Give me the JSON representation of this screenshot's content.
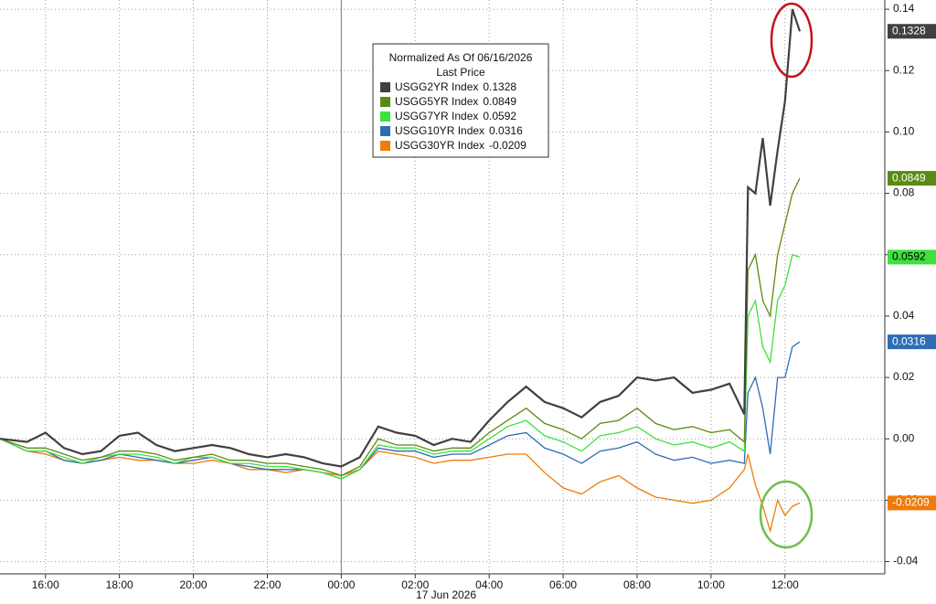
{
  "chart_data": {
    "type": "line",
    "legend_title": "Normalized As Of 06/16/2026",
    "legend_subtitle": "Last Price",
    "x_sublabel": "17 Jun 2026",
    "x": [
      -9.23,
      -8.5,
      -8,
      -7.5,
      -7,
      -6.5,
      -6,
      -5.5,
      -5,
      -4.5,
      -4,
      -3.5,
      -3,
      -2.5,
      -2,
      -1.5,
      -1,
      -0.5,
      0,
      0.5,
      1,
      1.5,
      2,
      2.5,
      3,
      3.5,
      4,
      4.5,
      5,
      5.5,
      6,
      6.5,
      7,
      7.5,
      8,
      8.5,
      9,
      9.5,
      10,
      10.5,
      10.9,
      11.0,
      11.2,
      11.4,
      11.6,
      11.8,
      12.0,
      12.2,
      12.4
    ],
    "series": [
      {
        "name": "USGG2YR Index",
        "color": "#404040",
        "values": [
          0,
          -0.001,
          0.002,
          -0.003,
          -0.005,
          -0.004,
          0.001,
          0.002,
          -0.002,
          -0.004,
          -0.003,
          -0.002,
          -0.003,
          -0.005,
          -0.006,
          -0.005,
          -0.006,
          -0.008,
          -0.009,
          -0.006,
          0.004,
          0.002,
          0.001,
          -0.002,
          0.0,
          -0.001,
          0.006,
          0.012,
          0.017,
          0.012,
          0.01,
          0.007,
          0.012,
          0.014,
          0.02,
          0.019,
          0.02,
          0.015,
          0.016,
          0.018,
          0.008,
          0.082,
          0.08,
          0.098,
          0.076,
          0.094,
          0.11,
          0.14,
          0.1328
        ]
      },
      {
        "name": "USGG5YR Index",
        "color": "#5b8a14",
        "values": [
          0,
          -0.003,
          -0.003,
          -0.005,
          -0.007,
          -0.006,
          -0.004,
          -0.004,
          -0.005,
          -0.007,
          -0.006,
          -0.005,
          -0.007,
          -0.007,
          -0.008,
          -0.008,
          -0.009,
          -0.01,
          -0.012,
          -0.009,
          0.0,
          -0.002,
          -0.002,
          -0.004,
          -0.003,
          -0.003,
          0.002,
          0.006,
          0.01,
          0.005,
          0.003,
          0.0,
          0.005,
          0.006,
          0.01,
          0.005,
          0.003,
          0.004,
          0.002,
          0.003,
          -0.001,
          0.055,
          0.06,
          0.045,
          0.04,
          0.06,
          0.07,
          0.08,
          0.0849
        ]
      },
      {
        "name": "USGG7YR Index",
        "color": "#3fe03f",
        "values": [
          0,
          -0.004,
          -0.004,
          -0.006,
          -0.008,
          -0.006,
          -0.005,
          -0.005,
          -0.006,
          -0.008,
          -0.006,
          -0.006,
          -0.008,
          -0.008,
          -0.009,
          -0.009,
          -0.01,
          -0.011,
          -0.013,
          -0.01,
          -0.002,
          -0.003,
          -0.003,
          -0.005,
          -0.004,
          -0.004,
          0.0,
          0.004,
          0.006,
          0.001,
          -0.001,
          -0.004,
          0.001,
          0.002,
          0.004,
          0.0,
          -0.002,
          -0.001,
          -0.003,
          -0.001,
          -0.004,
          0.04,
          0.045,
          0.03,
          0.025,
          0.045,
          0.05,
          0.06,
          0.0592
        ]
      },
      {
        "name": "USGG10YR Index",
        "color": "#2e6db4",
        "values": [
          0,
          -0.004,
          -0.004,
          -0.007,
          -0.008,
          -0.007,
          -0.005,
          -0.006,
          -0.007,
          -0.008,
          -0.007,
          -0.006,
          -0.008,
          -0.009,
          -0.01,
          -0.01,
          -0.01,
          -0.011,
          -0.013,
          -0.01,
          -0.003,
          -0.004,
          -0.004,
          -0.006,
          -0.005,
          -0.005,
          -0.002,
          0.001,
          0.002,
          -0.003,
          -0.005,
          -0.008,
          -0.004,
          -0.003,
          -0.001,
          -0.005,
          -0.007,
          -0.006,
          -0.008,
          -0.007,
          -0.008,
          0.015,
          0.02,
          0.01,
          -0.005,
          0.02,
          0.02,
          0.03,
          0.0316
        ]
      },
      {
        "name": "USGG30YR Index",
        "color": "#ef7b0b",
        "values": [
          0,
          -0.004,
          -0.005,
          -0.007,
          -0.008,
          -0.007,
          -0.006,
          -0.007,
          -0.007,
          -0.008,
          -0.008,
          -0.007,
          -0.008,
          -0.01,
          -0.01,
          -0.011,
          -0.01,
          -0.011,
          -0.012,
          -0.01,
          -0.004,
          -0.005,
          -0.006,
          -0.008,
          -0.007,
          -0.007,
          -0.006,
          -0.005,
          -0.005,
          -0.011,
          -0.016,
          -0.018,
          -0.014,
          -0.012,
          -0.016,
          -0.019,
          -0.02,
          -0.021,
          -0.02,
          -0.016,
          -0.01,
          -0.005,
          -0.015,
          -0.022,
          -0.03,
          -0.02,
          -0.025,
          -0.022,
          -0.0209
        ]
      }
    ],
    "xlim": [
      -9.23,
      14.7
    ],
    "xticks": [
      {
        "value": -8,
        "label": "16:00"
      },
      {
        "value": -6,
        "label": "18:00"
      },
      {
        "value": -4,
        "label": "20:00"
      },
      {
        "value": -2,
        "label": "22:00"
      },
      {
        "value": 0,
        "label": "00:00"
      },
      {
        "value": 2,
        "label": "02:00"
      },
      {
        "value": 4,
        "label": "04:00"
      },
      {
        "value": 6,
        "label": "06:00"
      },
      {
        "value": 8,
        "label": "08:00"
      },
      {
        "value": 10,
        "label": "10:00"
      },
      {
        "value": 12,
        "label": "12:00"
      }
    ],
    "ylim": [
      -0.044,
      0.143
    ],
    "yticks": [
      -0.04,
      -0.02,
      {
        "value": 0,
        "label": "0.00"
      },
      0.02,
      0.04,
      0.06,
      0.08,
      {
        "value": 0.1,
        "label": "0.10"
      },
      0.12,
      0.14
    ],
    "grid": true
  }
}
